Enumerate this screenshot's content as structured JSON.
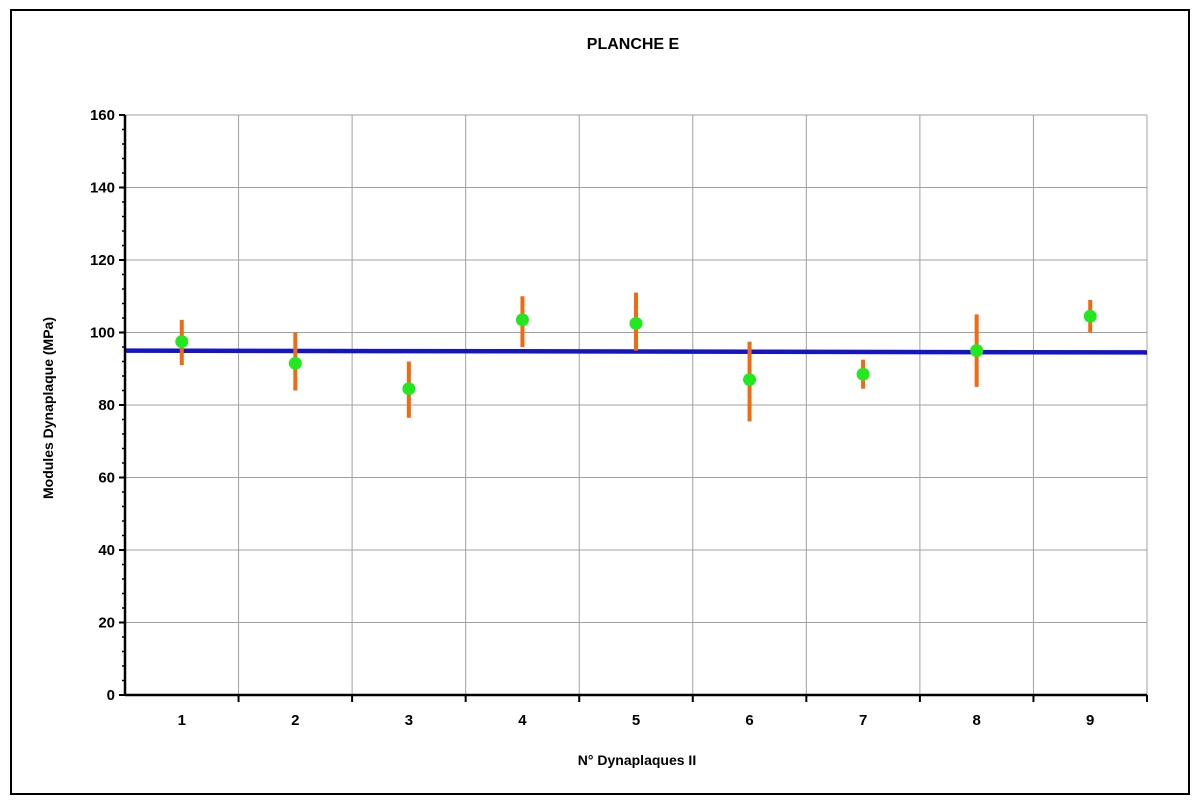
{
  "chart_data": {
    "type": "scatter",
    "title": "PLANCHE E",
    "xlabel": "N° Dynaplaques II",
    "ylabel": "Modules Dynaplaque (MPa)",
    "categories": [
      "1",
      "2",
      "3",
      "4",
      "5",
      "6",
      "7",
      "8",
      "9"
    ],
    "ylim": [
      0,
      160
    ],
    "yticks": [
      "0",
      "20",
      "40",
      "60",
      "80",
      "100",
      "120",
      "140",
      "160"
    ],
    "grid": true,
    "series": [
      {
        "values": [
          97.5,
          91.5,
          84.5,
          103.5,
          102.5,
          87,
          88.5,
          95,
          104.5
        ],
        "error_low": [
          91,
          84,
          76.5,
          96,
          95,
          75.5,
          84.5,
          85,
          100
        ],
        "error_high": [
          103.5,
          100,
          92,
          110,
          111,
          97.5,
          92.5,
          105,
          109
        ]
      }
    ],
    "reference_line": {
      "start": 95,
      "end": 94.5
    },
    "colors": {
      "points": "#22e81e",
      "error_bars": "#f26a10",
      "reference_line": "#1515c8",
      "grid": "#a0a0a0"
    }
  }
}
